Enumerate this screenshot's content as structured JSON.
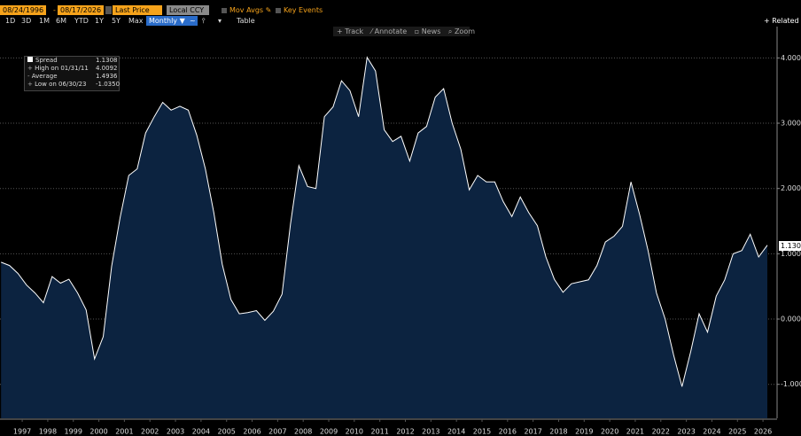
{
  "toolbar": {
    "start_date": "08/24/1996",
    "dash": "-",
    "end_date": "08/17/2026",
    "price": "Last Price",
    "currency": "Local CCY",
    "mov_avgs": "Mov Avgs",
    "key_events": "Key Events",
    "ranges": [
      "1D",
      "3D",
      "1M",
      "6M",
      "YTD",
      "1Y",
      "5Y",
      "Max"
    ],
    "frequency": "Monthly",
    "table": "Table",
    "related": "Related",
    "tools": [
      "Track",
      "Annotate",
      "News",
      "Zoom"
    ]
  },
  "legend": {
    "items": [
      {
        "label": "High on 01/31/11",
        "value": "4.0092"
      },
      {
        "label": "Average",
        "value": "1.4936"
      },
      {
        "label": "Low on 06/30/23",
        "value": "-1.0350"
      }
    ],
    "current": "1.1308"
  },
  "chart_data": {
    "type": "area",
    "x": [
      1996.67,
      1997,
      1997.33,
      1997.67,
      1998,
      1998.33,
      1998.67,
      1999,
      1999.33,
      1999.67,
      2000,
      2000.33,
      2000.67,
      2001,
      2001.33,
      2001.67,
      2002,
      2002.33,
      2002.67,
      2003,
      2003.33,
      2003.67,
      2004,
      2004.33,
      2004.67,
      2005,
      2005.33,
      2005.67,
      2006,
      2006.33,
      2006.67,
      2007,
      2007.33,
      2007.67,
      2008,
      2008.33,
      2008.67,
      2009,
      2009.33,
      2009.67,
      2010,
      2010.33,
      2010.67,
      2011,
      2011.33,
      2011.67,
      2012,
      2012.33,
      2012.67,
      2013,
      2013.33,
      2013.67,
      2014,
      2014.33,
      2014.67,
      2015,
      2015.33,
      2015.67,
      2016,
      2016.33,
      2016.67,
      2017,
      2017.33,
      2017.67,
      2018,
      2018.33,
      2018.67,
      2019,
      2019.33,
      2019.67,
      2020,
      2020.33,
      2020.67,
      2021,
      2021.33,
      2021.67,
      2022,
      2022.33,
      2022.67,
      2023,
      2023.33,
      2023.67,
      2024,
      2024.33,
      2024.67,
      2025,
      2025.33,
      2025.67,
      2026,
      2026.33,
      2026.67
    ],
    "series": [
      {
        "name": "Spread",
        "color": "#ffffff",
        "fill": "#0c2340",
        "values": [
          0.87,
          0.82,
          0.7,
          0.52,
          0.4,
          0.25,
          0.65,
          0.55,
          0.61,
          0.4,
          0.14,
          -0.61,
          -0.27,
          0.81,
          1.55,
          2.2,
          2.3,
          2.85,
          3.1,
          3.32,
          3.2,
          3.26,
          3.2,
          2.82,
          2.3,
          1.63,
          0.84,
          0.3,
          0.08,
          0.1,
          0.13,
          -0.02,
          0.12,
          0.38,
          1.45,
          2.35,
          2.03,
          2.0,
          3.1,
          3.25,
          3.65,
          3.5,
          3.1,
          4.0092,
          3.8,
          2.9,
          2.72,
          2.8,
          2.42,
          2.85,
          2.95,
          3.4,
          3.53,
          3.0,
          2.6,
          1.98,
          2.2,
          2.1,
          2.1,
          1.8,
          1.57,
          1.87,
          1.63,
          1.43,
          0.95,
          0.61,
          0.41,
          0.54,
          0.57,
          0.6,
          0.82,
          1.18,
          1.27,
          1.42,
          2.1,
          1.6,
          1.05,
          0.4,
          0.0,
          -0.55,
          -1.035,
          -0.5,
          0.08,
          -0.2,
          0.35,
          0.6,
          1.0,
          1.05,
          1.3,
          0.95,
          1.1308
        ]
      }
    ],
    "xlim": [
      1996.63,
      2026.67
    ],
    "xticks": [
      {
        "value": 1997.5,
        "label": "1997"
      },
      {
        "value": 1998.5,
        "label": "1998"
      },
      {
        "value": 1999.5,
        "label": "1999"
      },
      {
        "value": 2000.5,
        "label": "2000"
      },
      {
        "value": 2001.5,
        "label": "2001"
      },
      {
        "value": 2002.5,
        "label": "2002"
      },
      {
        "value": 2003.5,
        "label": "2003"
      },
      {
        "value": 2004.5,
        "label": "2004"
      },
      {
        "value": 2005.5,
        "label": "2005"
      },
      {
        "value": 2006.5,
        "label": "2006"
      },
      {
        "value": 2007.5,
        "label": "2007"
      },
      {
        "value": 2008.5,
        "label": "2008"
      },
      {
        "value": 2009.5,
        "label": "2009"
      },
      {
        "value": 2010.5,
        "label": "2010"
      },
      {
        "value": 2011.5,
        "label": "2011"
      },
      {
        "value": 2012.5,
        "label": "2012"
      },
      {
        "value": 2013.5,
        "label": "2013"
      },
      {
        "value": 2014.5,
        "label": "2014"
      },
      {
        "value": 2015.5,
        "label": "2015"
      },
      {
        "value": 2016.5,
        "label": "2016"
      },
      {
        "value": 2017.5,
        "label": "2017"
      },
      {
        "value": 2018.5,
        "label": "2018"
      },
      {
        "value": 2019.5,
        "label": "2019"
      },
      {
        "value": 2020.5,
        "label": "2020"
      },
      {
        "value": 2021.5,
        "label": "2021"
      },
      {
        "value": 2022.5,
        "label": "2022"
      },
      {
        "value": 2023.5,
        "label": "2023"
      },
      {
        "value": 2024.5,
        "label": "2024"
      },
      {
        "value": 2025.5,
        "label": "2025"
      },
      {
        "value": 2026.5,
        "label": "2026"
      }
    ],
    "ylim": [
      -1.52,
      4.48
    ],
    "yticks": [
      {
        "value": 4,
        "label": "4.000"
      },
      {
        "value": 3,
        "label": "3.000"
      },
      {
        "value": 2,
        "label": "2.000"
      },
      {
        "value": 1,
        "label": "1.000"
      },
      {
        "value": 0,
        "label": "0.000"
      },
      {
        "value": -1,
        "label": "-1.000"
      }
    ],
    "grid": true
  }
}
